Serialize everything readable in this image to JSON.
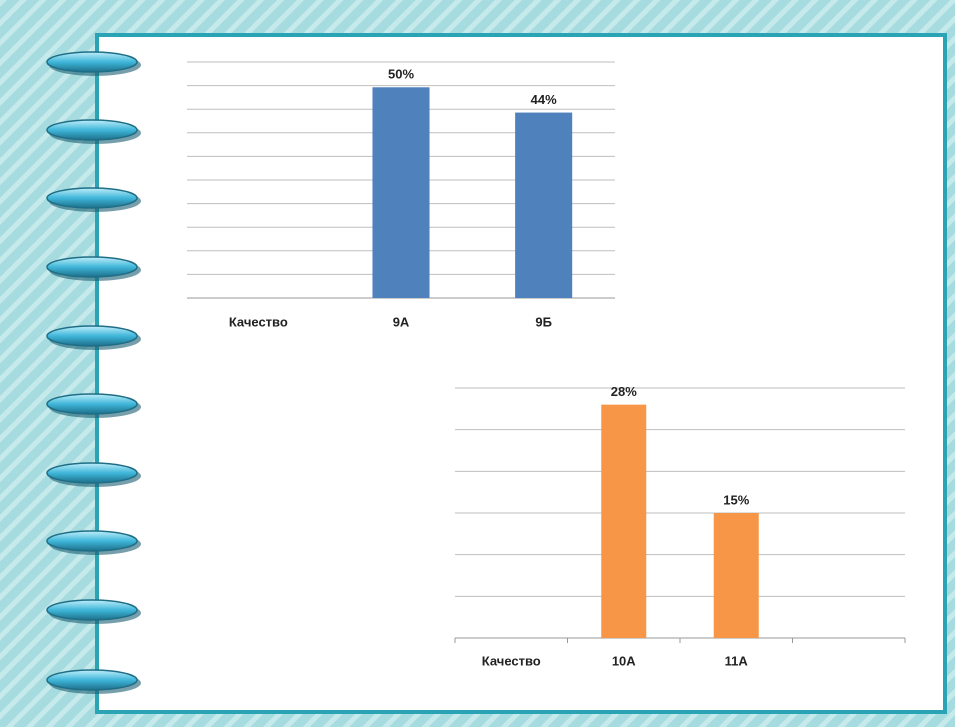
{
  "chart_data": [
    {
      "type": "bar",
      "categories": [
        "Качество",
        "9А",
        "9Б"
      ],
      "values": [
        null,
        50,
        44
      ],
      "value_labels": [
        null,
        "50%",
        "44%"
      ],
      "color": "#4f81bd",
      "ylim": [
        0,
        56
      ]
    },
    {
      "type": "bar",
      "categories": [
        "Качество",
        "10А",
        "11А",
        null
      ],
      "values": [
        null,
        28,
        15,
        null
      ],
      "value_labels": [
        null,
        "28%",
        "15%",
        null
      ],
      "color": "#f79646",
      "ylim": [
        0,
        30
      ]
    }
  ]
}
